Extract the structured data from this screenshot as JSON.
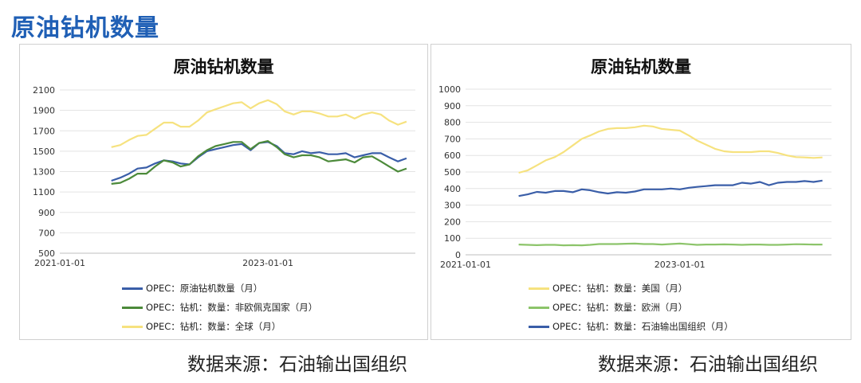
{
  "page_title": "原油钻机数量",
  "sources": {
    "left": "数据来源：石油输出国组织",
    "right": "数据来源：石油输出国组织"
  },
  "chart_data": [
    {
      "type": "line",
      "title": "原油钻机数量",
      "xlabel": "",
      "ylabel": "",
      "ylim": [
        500,
        2100
      ],
      "yticks": [
        500,
        700,
        900,
        1100,
        1300,
        1500,
        1700,
        1900,
        2100
      ],
      "xlim": [
        "2021-01-01",
        "2024-06-01"
      ],
      "xticks": [
        "2021-01-01",
        "2023-01-01"
      ],
      "grid": true,
      "legend_position": "bottom",
      "x": [
        "2021-07-01",
        "2021-08-01",
        "2021-09-01",
        "2021-10-01",
        "2021-11-01",
        "2021-12-01",
        "2022-01-01",
        "2022-02-01",
        "2022-03-01",
        "2022-04-01",
        "2022-05-01",
        "2022-06-01",
        "2022-07-01",
        "2022-08-01",
        "2022-09-01",
        "2022-10-01",
        "2022-11-01",
        "2022-12-01",
        "2023-01-01",
        "2023-02-01",
        "2023-03-01",
        "2023-04-01",
        "2023-05-01",
        "2023-06-01",
        "2023-07-01",
        "2023-08-01",
        "2023-09-01",
        "2023-10-01",
        "2023-11-01",
        "2023-12-01",
        "2024-01-01",
        "2024-02-01",
        "2024-03-01",
        "2024-04-01",
        "2024-05-01"
      ],
      "series": [
        {
          "name": "OPEC：原油钻机数量（月）",
          "color": "#3a5ea8",
          "values": [
            1210,
            1240,
            1280,
            1330,
            1340,
            1380,
            1410,
            1400,
            1380,
            1370,
            1440,
            1500,
            1520,
            1540,
            1560,
            1570,
            1510,
            1580,
            1590,
            1550,
            1480,
            1470,
            1500,
            1480,
            1490,
            1470,
            1470,
            1480,
            1440,
            1460,
            1480,
            1480,
            1440,
            1400,
            1430
          ]
        },
        {
          "name": "OPEC：钻机：数量：非欧佩克国家（月）",
          "color": "#4c8a3a",
          "values": [
            1180,
            1190,
            1230,
            1280,
            1280,
            1350,
            1410,
            1390,
            1350,
            1370,
            1450,
            1510,
            1550,
            1570,
            1590,
            1590,
            1520,
            1580,
            1600,
            1540,
            1470,
            1440,
            1460,
            1460,
            1440,
            1400,
            1410,
            1420,
            1390,
            1440,
            1450,
            1400,
            1350,
            1300,
            1330
          ]
        },
        {
          "name": "OPEC：钻机：数量：全球（月）",
          "color": "#f6e27f",
          "values": [
            1540,
            1560,
            1610,
            1650,
            1660,
            1720,
            1780,
            1780,
            1740,
            1740,
            1800,
            1880,
            1910,
            1940,
            1970,
            1980,
            1920,
            1970,
            2000,
            1960,
            1890,
            1860,
            1890,
            1890,
            1870,
            1840,
            1840,
            1860,
            1820,
            1860,
            1880,
            1860,
            1800,
            1760,
            1790
          ]
        }
      ]
    },
    {
      "type": "line",
      "title": "原油钻机数量",
      "xlabel": "",
      "ylabel": "",
      "ylim": [
        0,
        1000
      ],
      "yticks": [
        0,
        100,
        200,
        300,
        400,
        500,
        600,
        700,
        800,
        900,
        1000
      ],
      "xlim": [
        "2021-01-01",
        "2024-06-01"
      ],
      "xticks": [
        "2021-01-01",
        "2023-01-01"
      ],
      "grid": true,
      "legend_position": "bottom",
      "x": [
        "2021-07-01",
        "2021-08-01",
        "2021-09-01",
        "2021-10-01",
        "2021-11-01",
        "2021-12-01",
        "2022-01-01",
        "2022-02-01",
        "2022-03-01",
        "2022-04-01",
        "2022-05-01",
        "2022-06-01",
        "2022-07-01",
        "2022-08-01",
        "2022-09-01",
        "2022-10-01",
        "2022-11-01",
        "2022-12-01",
        "2023-01-01",
        "2023-02-01",
        "2023-03-01",
        "2023-04-01",
        "2023-05-01",
        "2023-06-01",
        "2023-07-01",
        "2023-08-01",
        "2023-09-01",
        "2023-10-01",
        "2023-11-01",
        "2023-12-01",
        "2024-01-01",
        "2024-02-01",
        "2024-03-01",
        "2024-04-01",
        "2024-05-01"
      ],
      "series": [
        {
          "name": "OPEC：钻机：数量：美国（月）",
          "color": "#f6e27f",
          "values": [
            495,
            510,
            540,
            570,
            590,
            620,
            660,
            700,
            720,
            745,
            760,
            765,
            765,
            770,
            780,
            775,
            760,
            755,
            750,
            720,
            690,
            665,
            640,
            625,
            620,
            620,
            620,
            625,
            625,
            615,
            600,
            590,
            588,
            585,
            588
          ]
        },
        {
          "name": "OPEC：钻机：数量：欧洲（月）",
          "color": "#8cc46a",
          "values": [
            62,
            60,
            58,
            60,
            60,
            57,
            58,
            57,
            60,
            65,
            65,
            65,
            67,
            68,
            65,
            65,
            62,
            65,
            68,
            64,
            60,
            62,
            62,
            63,
            62,
            60,
            62,
            62,
            60,
            60,
            62,
            64,
            63,
            62,
            62
          ]
        },
        {
          "name": "OPEC：钻机：数量：石油输出国组织（月）",
          "color": "#3a5ea8",
          "values": [
            355,
            365,
            380,
            375,
            385,
            385,
            378,
            395,
            390,
            378,
            370,
            378,
            375,
            382,
            395,
            395,
            395,
            400,
            395,
            405,
            410,
            415,
            420,
            420,
            420,
            435,
            430,
            440,
            420,
            435,
            440,
            440,
            445,
            440,
            448
          ]
        }
      ]
    }
  ]
}
